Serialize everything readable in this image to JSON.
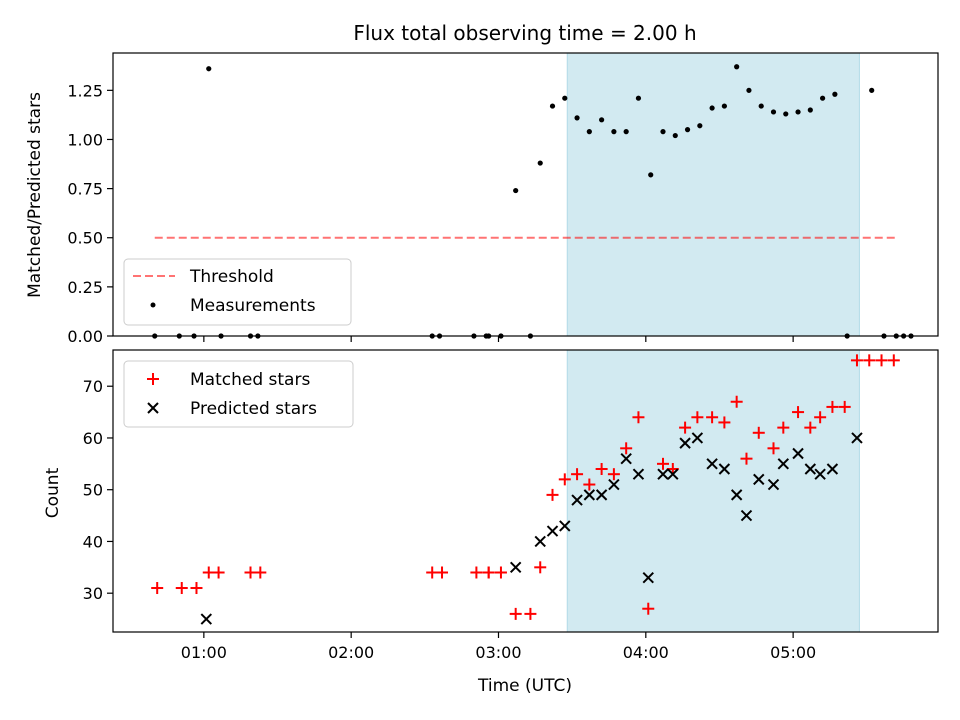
{
  "title": "Flux total observing time = 2.00 h",
  "colors": {
    "span": "#add8e6",
    "threshold": "#ff0000",
    "measurements": "#000000",
    "matched": "#ff0000",
    "predicted": "#000000"
  },
  "chart_data": [
    {
      "type": "scatter",
      "ylabel": "Matched/Predicted stars",
      "ylim": [
        0,
        1.44
      ],
      "yticks": [
        0,
        0.25,
        0.5,
        0.75,
        1.0,
        1.25
      ],
      "ytick_labels": [
        "0.00",
        "0.25",
        "0.50",
        "0.75",
        "1.00",
        "1.25"
      ],
      "xlim": [
        "00:23",
        "05:59"
      ],
      "xticks": [
        "01:00",
        "02:00",
        "03:00",
        "04:00",
        "05:00"
      ],
      "grid": false,
      "legend_position": "lower-left",
      "shaded_span": [
        "03:28",
        "05:27"
      ],
      "threshold": {
        "name": "Threshold",
        "value": 0.5,
        "x": [
          "00:40",
          "05:42"
        ]
      },
      "measurements": {
        "name": "Measurements",
        "x": [
          "00:40",
          "00:50",
          "00:56",
          "01:02",
          "01:07",
          "01:19",
          "01:22",
          "02:33",
          "02:36",
          "02:50",
          "02:55",
          "02:56",
          "03:01",
          "03:07",
          "03:13",
          "03:17",
          "03:22",
          "03:27",
          "03:32",
          "03:37",
          "03:42",
          "03:47",
          "03:52",
          "03:57",
          "04:02",
          "04:07",
          "04:12",
          "04:17",
          "04:22",
          "04:27",
          "04:32",
          "04:37",
          "04:42",
          "04:47",
          "04:52",
          "04:57",
          "05:02",
          "05:07",
          "05:12",
          "05:17",
          "05:22",
          "05:32",
          "05:37",
          "05:42"
        ],
        "y": [
          0,
          0,
          0,
          1.36,
          0,
          0,
          0,
          0,
          0,
          0,
          0,
          0,
          0,
          0.74,
          0,
          0.88,
          1.17,
          1.21,
          1.11,
          1.04,
          1.1,
          1.04,
          1.04,
          1.21,
          0.82,
          1.04,
          1.02,
          1.05,
          1.07,
          1.16,
          1.17,
          1.37,
          1.25,
          1.17,
          1.14,
          1.13,
          1.14,
          1.15,
          1.21,
          1.23,
          0,
          1.25,
          0,
          0
        ]
      },
      "extra_zero_points": [
        "05:45",
        "05:48"
      ]
    },
    {
      "type": "scatter",
      "xlabel": "Time (UTC)",
      "ylabel": "Count",
      "ylim": [
        22.5,
        77
      ],
      "yticks": [
        30,
        40,
        50,
        60,
        70
      ],
      "ytick_labels": [
        "30",
        "40",
        "50",
        "60",
        "70"
      ],
      "xlim": [
        "00:23",
        "05:59"
      ],
      "xticks": [
        "01:00",
        "02:00",
        "03:00",
        "04:00",
        "05:00"
      ],
      "xtick_labels": [
        "01:00",
        "02:00",
        "03:00",
        "04:00",
        "05:00"
      ],
      "grid": false,
      "legend_position": "upper-left",
      "shaded_span": [
        "03:28",
        "05:27"
      ],
      "series": [
        {
          "name": "Matched stars",
          "marker": "plus",
          "x": [
            "00:41",
            "00:51",
            "00:57",
            "01:02",
            "01:06",
            "01:19",
            "01:23",
            "02:33",
            "02:37",
            "02:51",
            "02:56",
            "02:56",
            "03:01",
            "03:07",
            "03:13",
            "03:17",
            "03:22",
            "03:27",
            "03:32",
            "03:37",
            "03:42",
            "03:47",
            "03:52",
            "03:57",
            "04:01",
            "04:07",
            "04:11",
            "04:16",
            "04:21",
            "04:27",
            "04:32",
            "04:37",
            "04:41",
            "04:46",
            "04:52",
            "04:56",
            "05:02",
            "05:07",
            "05:11",
            "05:16",
            "05:21",
            "05:26",
            "05:31",
            "05:36",
            "05:41"
          ],
          "y": [
            31,
            31,
            31,
            34,
            34,
            34,
            34,
            34,
            34,
            34,
            34,
            34,
            34,
            26,
            26,
            35,
            49,
            52,
            53,
            51,
            54,
            53,
            58,
            64,
            27,
            55,
            54,
            62,
            64,
            64,
            63,
            67,
            56,
            61,
            58,
            62,
            65,
            62,
            64,
            66,
            66,
            75,
            75,
            75,
            75
          ]
        },
        {
          "name": "Predicted stars",
          "marker": "x",
          "x": [
            "01:01",
            "03:07",
            "03:17",
            "03:22",
            "03:27",
            "03:32",
            "03:37",
            "03:42",
            "03:47",
            "03:52",
            "03:57",
            "04:01",
            "04:07",
            "04:11",
            "04:16",
            "04:21",
            "04:27",
            "04:32",
            "04:37",
            "04:41",
            "04:46",
            "04:52",
            "04:56",
            "05:02",
            "05:07",
            "05:11",
            "05:16",
            "05:26"
          ],
          "y": [
            25,
            35,
            40,
            42,
            43,
            48,
            49,
            49,
            51,
            56,
            53,
            33,
            53,
            53,
            59,
            60,
            55,
            54,
            49,
            45,
            52,
            51,
            55,
            57,
            54,
            53,
            54,
            60
          ]
        }
      ]
    }
  ]
}
